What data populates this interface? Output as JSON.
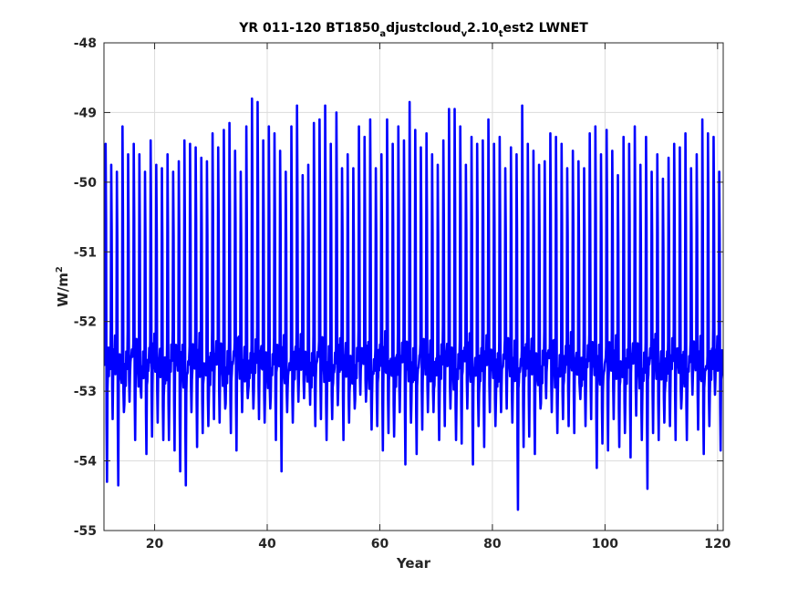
{
  "chart_data": {
    "type": "line",
    "title": {
      "parts": [
        {
          "text": "YR 011-120 BT1850",
          "sub": false
        },
        {
          "text": "a",
          "sub": true
        },
        {
          "text": "djustcloud",
          "sub": false
        },
        {
          "text": "v",
          "sub": true
        },
        {
          "text": "2.10",
          "sub": false
        },
        {
          "text": "t",
          "sub": true
        },
        {
          "text": "est2 LWNET",
          "sub": false
        }
      ]
    },
    "xlabel": "Year",
    "ylabel": {
      "base": "W/m",
      "sup": "2"
    },
    "xlim": [
      11,
      121
    ],
    "ylim": [
      -55,
      -48
    ],
    "xticks": [
      20,
      40,
      60,
      80,
      100,
      120
    ],
    "yticks": [
      -55,
      -54,
      -53,
      -52,
      -51,
      -50,
      -49,
      -48
    ],
    "grid": true,
    "series": [
      {
        "color": "#0000ff",
        "x_start": 11.0417,
        "x_step": 0.083333,
        "annual_max": [
          -49.45,
          -49.75,
          -49.85,
          -49.2,
          -49.6,
          -49.45,
          -49.6,
          -49.85,
          -49.4,
          -49.75,
          -49.8,
          -49.6,
          -49.85,
          -49.7,
          -49.4,
          -49.45,
          -49.5,
          -49.65,
          -49.7,
          -49.3,
          -49.5,
          -49.25,
          -49.15,
          -49.55,
          -49.85,
          -49.2,
          -48.8,
          -48.85,
          -49.4,
          -49.2,
          -49.3,
          -49.55,
          -49.85,
          -49.2,
          -48.9,
          -49.9,
          -49.75,
          -49.15,
          -49.1,
          -48.9,
          -49.45,
          -49.0,
          -49.8,
          -49.6,
          -49.8,
          -49.2,
          -49.35,
          -49.1,
          -49.8,
          -49.6,
          -49.1,
          -49.45,
          -49.2,
          -49.4,
          -48.85,
          -49.25,
          -49.5,
          -49.3,
          -49.6,
          -49.75,
          -49.4,
          -48.95,
          -48.95,
          -49.2,
          -49.75,
          -49.35,
          -49.45,
          -49.4,
          -49.1,
          -49.45,
          -49.35,
          -49.8,
          -49.5,
          -49.6,
          -48.9,
          -49.45,
          -49.55,
          -49.75,
          -49.7,
          -49.3,
          -49.35,
          -49.45,
          -49.8,
          -49.55,
          -49.7,
          -49.8,
          -49.3,
          -49.2,
          -49.6,
          -49.25,
          -49.55,
          -49.9,
          -49.35,
          -49.45,
          -49.2,
          -49.75,
          -49.35,
          -49.85,
          -49.6,
          -49.95,
          -49.65,
          -49.45,
          -49.5,
          -49.3,
          -49.8,
          -49.6,
          -49.1,
          -49.3,
          -49.35,
          -49.85
        ],
        "annual_min": [
          -54.3,
          -53.4,
          -54.35,
          -53.3,
          -53.15,
          -53.7,
          -53.0,
          -53.9,
          -53.65,
          -53.45,
          -53.7,
          -53.7,
          -53.85,
          -54.15,
          -54.35,
          -53.3,
          -53.8,
          -53.6,
          -53.5,
          -53.4,
          -53.45,
          -53.25,
          -53.6,
          -53.85,
          -53.3,
          -53.1,
          -53.25,
          -53.4,
          -53.45,
          -53.25,
          -53.7,
          -54.15,
          -53.3,
          -53.45,
          -53.15,
          -53.1,
          -52.9,
          -53.5,
          -53.4,
          -53.7,
          -53.4,
          -53.2,
          -53.7,
          -53.45,
          -53.25,
          -53.05,
          -53.15,
          -53.55,
          -53.5,
          -53.85,
          -53.6,
          -53.65,
          -53.3,
          -54.05,
          -53.45,
          -53.9,
          -53.55,
          -53.3,
          -53.3,
          -53.7,
          -53.5,
          -53.25,
          -53.7,
          -53.75,
          -53.25,
          -54.05,
          -53.5,
          -53.8,
          -53.3,
          -53.5,
          -53.3,
          -53.25,
          -53.45,
          -54.7,
          -53.8,
          -53.65,
          -53.9,
          -53.25,
          -53.1,
          -53.3,
          -53.6,
          -53.4,
          -53.5,
          -53.6,
          -53.0,
          -53.5,
          -53.4,
          -54.1,
          -53.75,
          -53.85,
          -53.4,
          -53.8,
          -53.6,
          -53.95,
          -53.35,
          -53.7,
          -54.4,
          -53.6,
          -53.7,
          -53.45,
          -53.5,
          -53.7,
          -53.25,
          -53.7,
          -53.05,
          -53.55,
          -53.9,
          -53.5,
          -53.05,
          -53.85
        ],
        "monthly_anomaly": [
          0.0,
          -0.2,
          0.5,
          -0.4,
          -0.9,
          -1.0,
          0.15,
          -0.6,
          -0.1,
          0.2,
          -0.15,
          0.35
        ]
      }
    ]
  }
}
